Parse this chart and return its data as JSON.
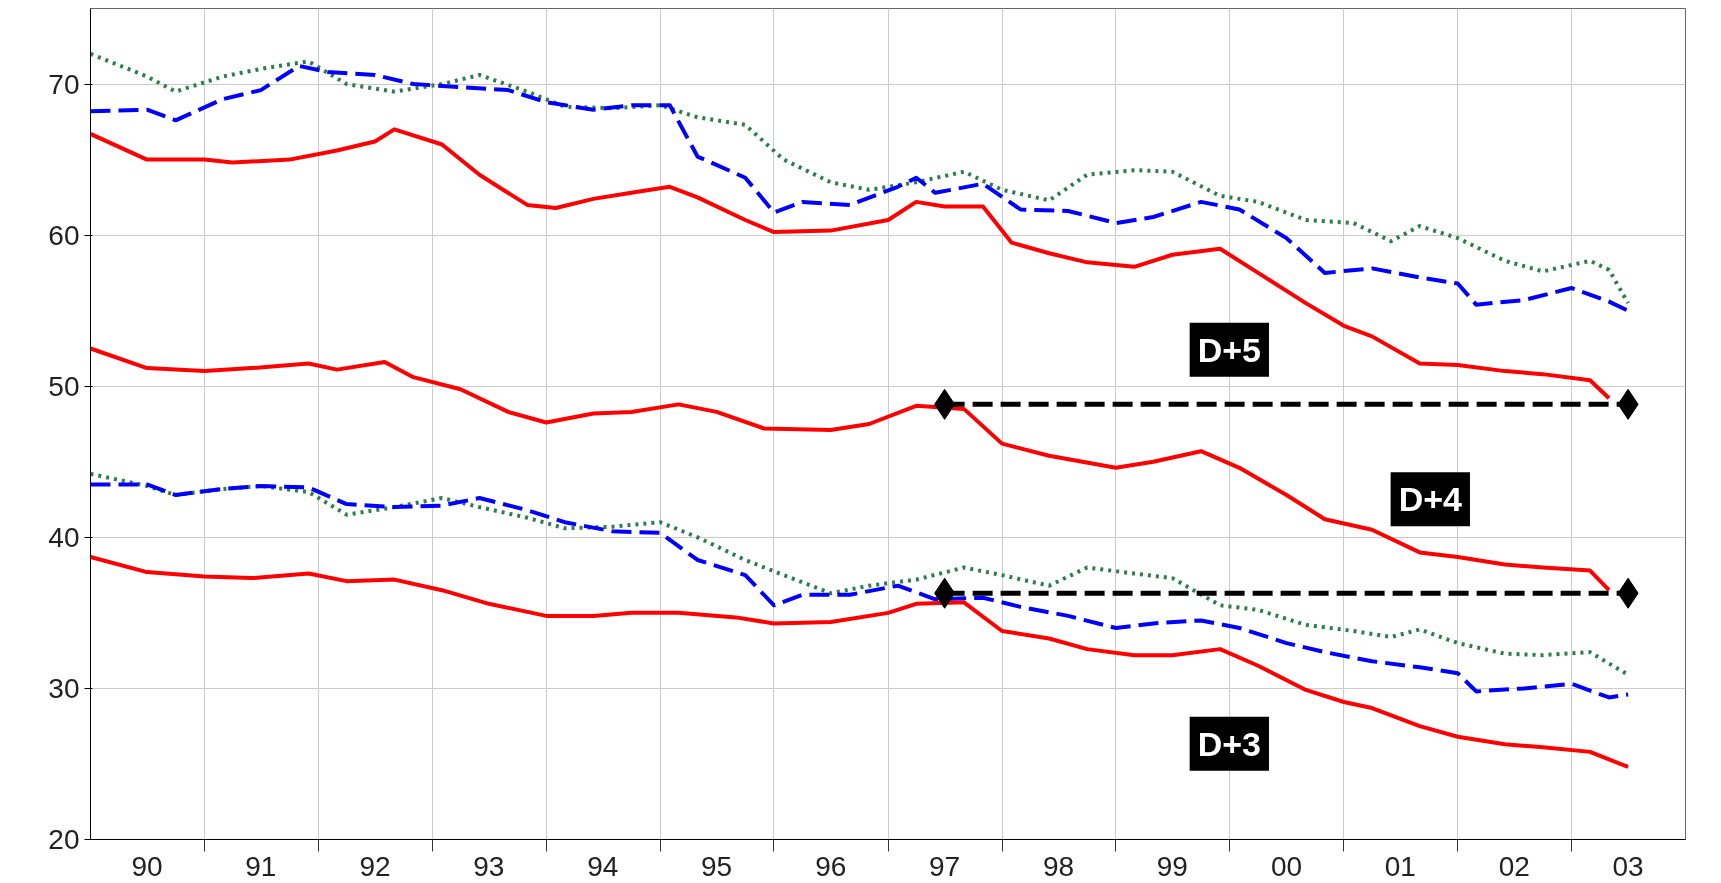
{
  "chart_data": {
    "type": "line",
    "xlim": [
      "1990-01",
      "2004-01"
    ],
    "ylim": [
      20,
      75
    ],
    "yticks": [
      20,
      30,
      40,
      50,
      60,
      70
    ],
    "grid": true,
    "xticks": [
      {
        "value": "1990-07",
        "label": "90"
      },
      {
        "value": "1991-07",
        "label": "91"
      },
      {
        "value": "1992-07",
        "label": "92"
      },
      {
        "value": "1993-07",
        "label": "93"
      },
      {
        "value": "1994-07",
        "label": "94"
      },
      {
        "value": "1995-07",
        "label": "95"
      },
      {
        "value": "1996-07",
        "label": "96"
      },
      {
        "value": "1997-07",
        "label": "97"
      },
      {
        "value": "1998-07",
        "label": "98"
      },
      {
        "value": "1999-07",
        "label": "99"
      },
      {
        "value": "2000-07",
        "label": "00"
      },
      {
        "value": "2001-07",
        "label": "01"
      },
      {
        "value": "2002-07",
        "label": "02"
      },
      {
        "value": "2003-07",
        "label": "03"
      },
      {
        "value": "1991-01",
        "label": null
      },
      {
        "value": "1992-01",
        "label": null
      },
      {
        "value": "1993-01",
        "label": null
      },
      {
        "value": "1994-01",
        "label": null
      },
      {
        "value": "1995-01",
        "label": null
      },
      {
        "value": "1996-01",
        "label": null
      },
      {
        "value": "1997-01",
        "label": null
      },
      {
        "value": "1998-01",
        "label": null
      },
      {
        "value": "1999-01",
        "label": null
      },
      {
        "value": "2000-01",
        "label": null
      },
      {
        "value": "2001-01",
        "label": null
      },
      {
        "value": "2002-01",
        "label": null
      },
      {
        "value": "2003-01",
        "label": null
      }
    ],
    "series": [
      {
        "color": "#2e7d4f",
        "line_style": "dotted",
        "x": [
          "1990-01",
          "1990-07",
          "1990-10",
          "1991-03",
          "1991-07",
          "1991-12",
          "1992-04",
          "1992-09",
          "1993-02",
          "1993-06",
          "1993-11",
          "1994-03",
          "1994-08",
          "1995-01",
          "1995-05",
          "1995-10",
          "1996-02",
          "1996-07",
          "1996-11",
          "1997-04",
          "1997-09",
          "1998-01",
          "1998-06",
          "1998-10",
          "1999-03",
          "1999-07",
          "1999-12",
          "2000-04",
          "2000-09",
          "2001-02",
          "2001-06",
          "2001-09",
          "2002-01",
          "2002-06",
          "2002-10",
          "2003-03",
          "2003-05",
          "2003-07"
        ],
        "values": [
          72.0,
          70.5,
          69.5,
          70.5,
          71.0,
          71.5,
          70.0,
          69.5,
          70.0,
          70.6,
          69.5,
          68.5,
          68.4,
          68.6,
          67.8,
          67.3,
          65.0,
          63.5,
          63.0,
          63.5,
          64.2,
          63.0,
          62.3,
          64.0,
          64.3,
          64.2,
          62.6,
          62.2,
          61.0,
          60.8,
          59.6,
          60.6,
          59.8,
          58.3,
          57.6,
          58.3,
          57.7,
          55.5
        ]
      },
      {
        "color": "#0000ff",
        "line_style": "dashed",
        "x": [
          "1990-01",
          "1990-07",
          "1990-10",
          "1991-03",
          "1991-07",
          "1991-11",
          "1992-02",
          "1992-07",
          "1992-11",
          "1993-04",
          "1993-09",
          "1994-01",
          "1994-06",
          "1994-10",
          "1995-02",
          "1995-05",
          "1995-10",
          "1996-01",
          "1996-04",
          "1996-09",
          "1997-02",
          "1997-04",
          "1997-06",
          "1997-11",
          "1998-03",
          "1998-08",
          "1999-01",
          "1999-05",
          "1999-10",
          "2000-02",
          "2000-07",
          "2000-11",
          "2001-04",
          "2001-09",
          "2002-01",
          "2002-03",
          "2002-08",
          "2003-01",
          "2003-05",
          "2003-07"
        ],
        "values": [
          68.2,
          68.3,
          67.6,
          69.0,
          69.6,
          71.2,
          70.8,
          70.6,
          70.0,
          69.8,
          69.6,
          68.8,
          68.3,
          68.6,
          68.6,
          65.2,
          63.8,
          61.5,
          62.2,
          62.0,
          63.2,
          63.8,
          62.8,
          63.4,
          61.7,
          61.6,
          60.8,
          61.2,
          62.2,
          61.7,
          59.8,
          57.5,
          57.8,
          57.2,
          56.8,
          55.4,
          55.7,
          56.5,
          55.6,
          55.0
        ]
      },
      {
        "name": "D+5",
        "color": "#ff0000",
        "line_style": "solid",
        "x": [
          "1990-01",
          "1990-07",
          "1991-01",
          "1991-04",
          "1991-10",
          "1992-03",
          "1992-07",
          "1992-09",
          "1993-02",
          "1993-06",
          "1993-11",
          "1994-02",
          "1994-06",
          "1994-10",
          "1995-02",
          "1995-05",
          "1995-10",
          "1996-01",
          "1996-07",
          "1997-01",
          "1997-04",
          "1997-07",
          "1997-11",
          "1998-02",
          "1998-06",
          "1998-10",
          "1999-03",
          "1999-07",
          "1999-12",
          "2000-04",
          "2000-09",
          "2001-01",
          "2001-04",
          "2001-09",
          "2002-01",
          "2002-06",
          "2002-10",
          "2003-03",
          "2003-05"
        ],
        "values": [
          66.7,
          65.0,
          65.0,
          64.8,
          65.0,
          65.6,
          66.2,
          67.0,
          66.0,
          64.0,
          62.0,
          61.8,
          62.4,
          62.8,
          63.2,
          62.5,
          61.0,
          60.2,
          60.3,
          61.0,
          62.2,
          61.9,
          61.9,
          59.5,
          58.8,
          58.2,
          57.9,
          58.7,
          59.1,
          57.5,
          55.5,
          54.0,
          53.3,
          51.5,
          51.4,
          51.0,
          50.8,
          50.4,
          49.2
        ]
      },
      {
        "name": "D+4",
        "color": "#ff0000",
        "line_style": "solid",
        "x": [
          "1990-01",
          "1990-07",
          "1991-01",
          "1991-06",
          "1991-12",
          "1992-03",
          "1992-08",
          "1992-11",
          "1993-04",
          "1993-09",
          "1994-01",
          "1994-06",
          "1994-10",
          "1995-03",
          "1995-07",
          "1995-12",
          "1996-07",
          "1996-11",
          "1997-04",
          "1997-09",
          "1998-01",
          "1998-06",
          "1999-01",
          "1999-05",
          "1999-10",
          "2000-02",
          "2000-07",
          "2000-11",
          "2001-04",
          "2001-09",
          "2002-01",
          "2002-06",
          "2002-10",
          "2003-03",
          "2003-05"
        ],
        "values": [
          52.5,
          51.2,
          51.0,
          51.2,
          51.5,
          51.1,
          51.6,
          50.6,
          49.8,
          48.3,
          47.6,
          48.2,
          48.3,
          48.8,
          48.3,
          47.2,
          47.1,
          47.5,
          48.7,
          48.5,
          46.2,
          45.4,
          44.6,
          45.0,
          45.7,
          44.6,
          42.8,
          41.2,
          40.5,
          39.0,
          38.7,
          38.2,
          38.0,
          37.8,
          36.5
        ]
      },
      {
        "color": "#2e7d4f",
        "line_style": "dotted",
        "x": [
          "1990-01",
          "1990-07",
          "1990-10",
          "1991-03",
          "1991-07",
          "1991-12",
          "1992-04",
          "1992-09",
          "1993-02",
          "1993-06",
          "1993-11",
          "1994-03",
          "1994-08",
          "1995-01",
          "1995-05",
          "1995-10",
          "1996-02",
          "1996-07",
          "1996-11",
          "1997-04",
          "1997-09",
          "1998-01",
          "1998-06",
          "1998-10",
          "1999-03",
          "1999-07",
          "1999-12",
          "2000-04",
          "2000-09",
          "2001-02",
          "2001-06",
          "2001-09",
          "2002-01",
          "2002-06",
          "2002-10",
          "2003-03",
          "2003-07"
        ],
        "values": [
          44.2,
          43.4,
          42.8,
          43.2,
          43.4,
          43.0,
          41.5,
          42.0,
          42.6,
          42.0,
          41.3,
          40.6,
          40.7,
          41.0,
          40.0,
          38.5,
          37.5,
          36.3,
          36.8,
          37.2,
          38.0,
          37.5,
          36.8,
          38.0,
          37.6,
          37.3,
          35.5,
          35.2,
          34.2,
          33.8,
          33.4,
          33.9,
          33.0,
          32.3,
          32.2,
          32.4,
          30.9
        ]
      },
      {
        "color": "#0000ff",
        "line_style": "dashed",
        "x": [
          "1990-01",
          "1990-07",
          "1990-10",
          "1991-03",
          "1991-07",
          "1991-12",
          "1992-04",
          "1992-09",
          "1993-02",
          "1993-06",
          "1993-11",
          "1994-03",
          "1994-08",
          "1995-01",
          "1995-05",
          "1995-10",
          "1996-01",
          "1996-04",
          "1996-09",
          "1997-02",
          "1997-06",
          "1997-11",
          "1998-03",
          "1998-08",
          "1999-01",
          "1999-05",
          "1999-10",
          "2000-02",
          "2000-07",
          "2000-11",
          "2001-04",
          "2001-09",
          "2002-01",
          "2002-03",
          "2002-08",
          "2003-01",
          "2003-05",
          "2003-07"
        ],
        "values": [
          43.5,
          43.5,
          42.8,
          43.2,
          43.4,
          43.3,
          42.2,
          42.0,
          42.1,
          42.6,
          41.8,
          41.0,
          40.4,
          40.3,
          38.5,
          37.5,
          35.5,
          36.2,
          36.2,
          36.8,
          35.9,
          36.0,
          35.4,
          34.8,
          34.0,
          34.3,
          34.5,
          34.0,
          33.0,
          32.4,
          31.8,
          31.4,
          31.0,
          29.8,
          30.0,
          30.3,
          29.4,
          29.6
        ]
      },
      {
        "name": "D+3",
        "color": "#ff0000",
        "line_style": "solid",
        "x": [
          "1990-01",
          "1990-07",
          "1991-01",
          "1991-06",
          "1991-12",
          "1992-04",
          "1992-09",
          "1993-02",
          "1993-07",
          "1994-01",
          "1994-06",
          "1994-10",
          "1995-03",
          "1995-09",
          "1996-01",
          "1996-07",
          "1997-01",
          "1997-04",
          "1997-09",
          "1998-01",
          "1998-06",
          "1998-10",
          "1999-03",
          "1999-07",
          "1999-12",
          "2000-04",
          "2000-09",
          "2001-01",
          "2001-04",
          "2001-09",
          "2002-01",
          "2002-06",
          "2002-10",
          "2003-03",
          "2003-07"
        ],
        "values": [
          38.7,
          37.7,
          37.4,
          37.3,
          37.6,
          37.1,
          37.2,
          36.5,
          35.6,
          34.8,
          34.8,
          35.0,
          35.0,
          34.7,
          34.3,
          34.4,
          35.0,
          35.6,
          35.7,
          33.8,
          33.3,
          32.6,
          32.2,
          32.2,
          32.6,
          31.5,
          29.9,
          29.1,
          28.7,
          27.5,
          26.8,
          26.3,
          26.1,
          25.8,
          24.8
        ]
      },
      {
        "color": "#000000",
        "line_style": "dashed",
        "marker": "diamond",
        "x": [
          "1997-07",
          "2003-07"
        ],
        "values": [
          48.8,
          48.8
        ]
      },
      {
        "color": "#000000",
        "line_style": "dashed",
        "marker": "diamond",
        "x": [
          "1997-07",
          "2003-07"
        ],
        "values": [
          36.3,
          36.3
        ]
      }
    ]
  }
}
